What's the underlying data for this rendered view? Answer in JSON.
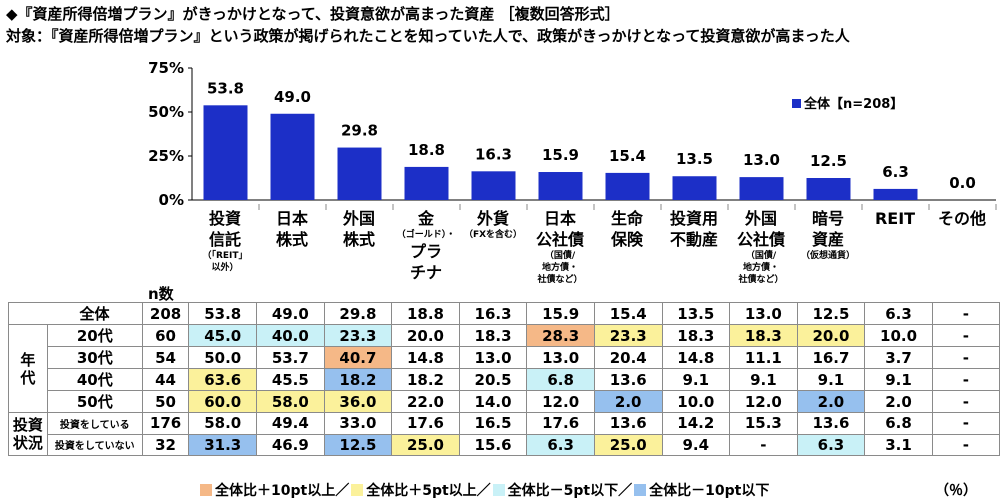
{
  "title": "◆『資産所得倍増プラン』がきっかけとなって、投資意欲が高まった資産 ［複数回答形式］",
  "subtitle": "対象：『資産所得倍増プラン』という政策が掲げられたことを知っていた人で、政策がきっかけとなって投資意欲が高まった人",
  "chart_data": {
    "type": "bar",
    "categories": [
      "投資信託",
      "日本株式",
      "外国株式",
      "金・プラチナ",
      "外貨",
      "日本公社債",
      "生命保険",
      "投資用不動産",
      "外国公社債",
      "暗号資産",
      "REIT",
      "その他"
    ],
    "series": [
      {
        "name": "全体【n=208】",
        "values": [
          53.8,
          49.0,
          29.8,
          18.8,
          16.3,
          15.9,
          15.4,
          13.5,
          13.0,
          12.5,
          6.3,
          0.0
        ]
      }
    ],
    "value_labels": [
      "53.8",
      "49.0",
      "29.8",
      "18.8",
      "16.3",
      "15.9",
      "15.4",
      "13.5",
      "13.0",
      "12.5",
      "6.3",
      "0.0"
    ],
    "ylim": [
      0,
      75
    ],
    "yticks": [
      "75%",
      "50%",
      "25%",
      "0%"
    ],
    "bar_color": "#1c2fc7",
    "legend_position": "top-right"
  },
  "legend_label": "全体【n=208】",
  "cat_headers": [
    {
      "lines": [
        "投資",
        "信託"
      ],
      "sub": [
        "（「REIT」",
        "以外）"
      ]
    },
    {
      "lines": [
        "日本",
        "株式"
      ],
      "sub": []
    },
    {
      "lines": [
        "外国",
        "株式"
      ],
      "sub": []
    },
    {
      "lines": [
        "金"
      ],
      "mid": "（ゴールド）・",
      "lines2": [
        "プラ",
        "チナ"
      ]
    },
    {
      "lines": [
        "外貨"
      ],
      "sub": [
        "（FXを含む）"
      ]
    },
    {
      "lines": [
        "日本",
        "公社債"
      ],
      "sub": [
        "（国債/",
        "地方債・",
        "社債など）"
      ]
    },
    {
      "lines": [
        "生命",
        "保険"
      ],
      "sub": []
    },
    {
      "lines": [
        "投資用",
        "不動産"
      ],
      "sub": []
    },
    {
      "lines": [
        "外国",
        "公社債"
      ],
      "sub": [
        "（国債/",
        "地方債・",
        "社債など）"
      ]
    },
    {
      "lines": [
        "暗号",
        "資産"
      ],
      "sub": [
        "（仮想通貨）"
      ]
    },
    {
      "lines": [
        "REIT"
      ],
      "sub": []
    },
    {
      "lines": [
        "その他"
      ],
      "sub": []
    }
  ],
  "n_header": "n数",
  "table": {
    "total": {
      "label": "全体",
      "n": "208",
      "values": [
        "53.8",
        "49.0",
        "29.8",
        "18.8",
        "16.3",
        "15.9",
        "15.4",
        "13.5",
        "13.0",
        "12.5",
        "6.3",
        "-"
      ]
    },
    "age_group": "年代",
    "age_rows": [
      {
        "label": "20代",
        "n": "60",
        "values": [
          "45.0",
          "40.0",
          "23.3",
          "20.0",
          "18.3",
          "28.3",
          "23.3",
          "18.3",
          "18.3",
          "20.0",
          "10.0",
          "-"
        ],
        "hl": [
          "lo5",
          "lo5",
          "lo5",
          "",
          "",
          "hi10",
          "hi5",
          "",
          "hi5",
          "hi5",
          "",
          ""
        ]
      },
      {
        "label": "30代",
        "n": "54",
        "values": [
          "50.0",
          "53.7",
          "40.7",
          "14.8",
          "13.0",
          "13.0",
          "20.4",
          "14.8",
          "11.1",
          "16.7",
          "3.7",
          "-"
        ],
        "hl": [
          "",
          "",
          "hi10",
          "",
          "",
          "",
          "",
          "",
          "",
          "",
          "",
          ""
        ]
      },
      {
        "label": "40代",
        "n": "44",
        "values": [
          "63.6",
          "45.5",
          "18.2",
          "18.2",
          "20.5",
          "6.8",
          "13.6",
          "9.1",
          "9.1",
          "9.1",
          "9.1",
          "-"
        ],
        "hl": [
          "hi5",
          "",
          "lo10",
          "",
          "",
          "lo5",
          "",
          "",
          "",
          "",
          "",
          ""
        ]
      },
      {
        "label": "50代",
        "n": "50",
        "values": [
          "60.0",
          "58.0",
          "36.0",
          "22.0",
          "14.0",
          "12.0",
          "2.0",
          "10.0",
          "12.0",
          "2.0",
          "2.0",
          "-"
        ],
        "hl": [
          "hi5",
          "hi5",
          "hi5",
          "",
          "",
          "",
          "lo10",
          "",
          "",
          "lo10",
          "",
          ""
        ]
      }
    ],
    "inv_group": "投資状況",
    "inv_rows": [
      {
        "label": "投資をしている",
        "n": "176",
        "values": [
          "58.0",
          "49.4",
          "33.0",
          "17.6",
          "16.5",
          "17.6",
          "13.6",
          "14.2",
          "15.3",
          "13.6",
          "6.8",
          "-"
        ],
        "hl": [
          "",
          "",
          "",
          "",
          "",
          "",
          "",
          "",
          "",
          "",
          "",
          ""
        ]
      },
      {
        "label": "投資をしていない",
        "n": "32",
        "values": [
          "31.3",
          "46.9",
          "12.5",
          "25.0",
          "15.6",
          "6.3",
          "25.0",
          "9.4",
          "-",
          "6.3",
          "3.1",
          "-"
        ],
        "hl": [
          "lo10",
          "",
          "lo10",
          "hi5",
          "",
          "lo5",
          "hi5",
          "",
          "",
          "lo5",
          "",
          ""
        ]
      }
    ]
  },
  "footer_legend": [
    {
      "label": "全体比＋10pt以上／",
      "color": "#f5b887"
    },
    {
      "label": "全体比＋5pt以上／",
      "color": "#fbf19b"
    },
    {
      "label": "全体比－5pt以下／",
      "color": "#c9f1f7"
    },
    {
      "label": "全体比－10pt以下",
      "color": "#96c0ee"
    }
  ],
  "unit": "（％）"
}
